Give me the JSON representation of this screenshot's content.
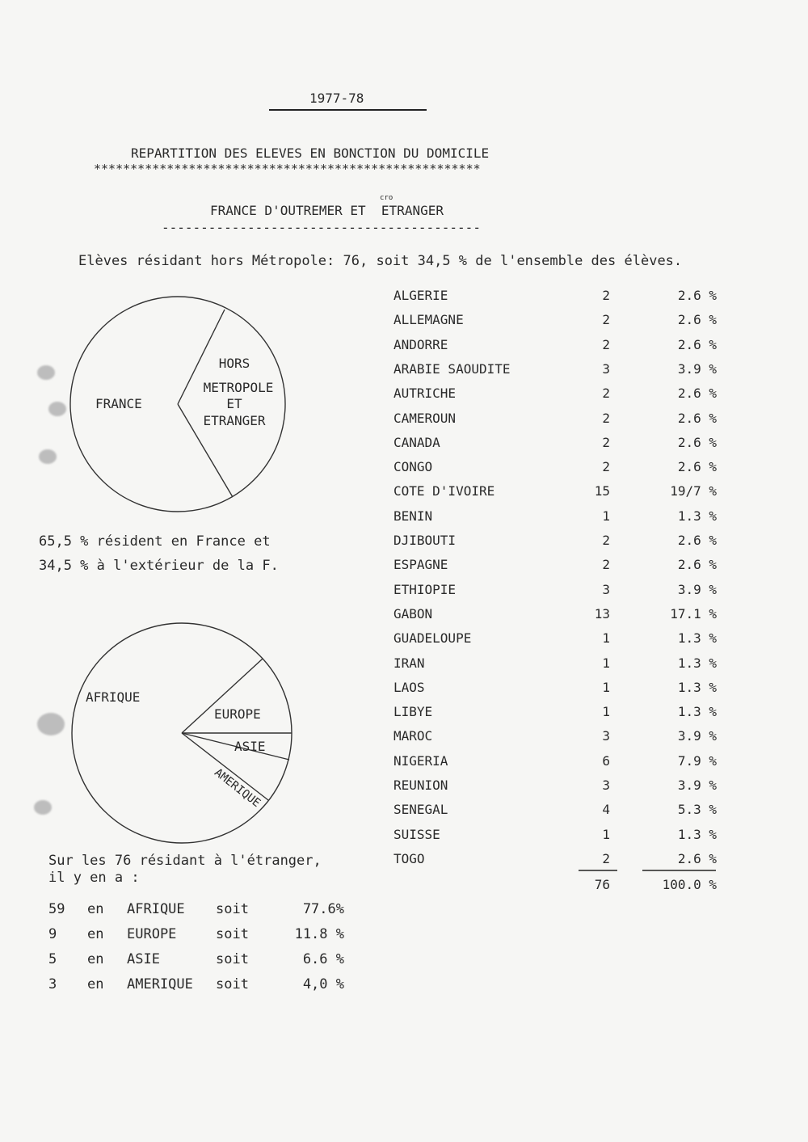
{
  "header": {
    "year": "1977-78",
    "title": "REPARTITION DES ELEVES EN BONCTION DU DOMICILE",
    "stars": "*****************************************************",
    "subtitle": "FRANCE D'OUTREMER ET  ETRANGER",
    "subtitle_annotation": "cro",
    "dashes": "-----------------------------------------"
  },
  "intro": "Elèves résidant hors Métropole: 76, soit 34,5 % de l'ensemble des élèves.",
  "pie1": {
    "labels": [
      "FRANCE",
      "HORS",
      "METROPOLE",
      "ET",
      "ETRANGER"
    ],
    "caption_line1": "65,5 % résident en France et",
    "caption_line2": "34,5 % à l'extérieur de la F."
  },
  "pie2": {
    "labels": [
      "AFRIQUE",
      "EUROPE",
      "ASIE",
      "AMERIQUE"
    ]
  },
  "summary": {
    "line1": "Sur les 76 résidant à l'étranger,",
    "line2": "il y en a :",
    "rows": [
      {
        "n": "59",
        "en": "en",
        "region": "AFRIQUE",
        "soit": "soit",
        "pct": "77.6%"
      },
      {
        "n": "9",
        "en": "en",
        "region": "EUROPE",
        "soit": "soit",
        "pct": "11.8 %"
      },
      {
        "n": "5",
        "en": "en",
        "region": "ASIE",
        "soit": "soit",
        "pct": "6.6 %"
      },
      {
        "n": "3",
        "en": "en",
        "region": "AMERIQUE",
        "soit": "soit",
        "pct": "4,0 %"
      }
    ]
  },
  "countries": [
    {
      "name": "ALGERIE",
      "count": "2",
      "pct": "2.6 %"
    },
    {
      "name": "ALLEMAGNE",
      "count": "2",
      "pct": "2.6 %"
    },
    {
      "name": "ANDORRE",
      "count": "2",
      "pct": "2.6 %"
    },
    {
      "name": "ARABIE SAOUDITE",
      "count": "3",
      "pct": "3.9 %"
    },
    {
      "name": "AUTRICHE",
      "count": "2",
      "pct": "2.6 %"
    },
    {
      "name": "CAMEROUN",
      "count": "2",
      "pct": "2.6 %"
    },
    {
      "name": "CANADA",
      "count": "2",
      "pct": "2.6 %"
    },
    {
      "name": "CONGO",
      "count": "2",
      "pct": "2.6 %"
    },
    {
      "name": "COTE D'IVOIRE",
      "count": "15",
      "pct": "19/7 %"
    },
    {
      "name": "BENIN",
      "count": "1",
      "pct": "1.3 %"
    },
    {
      "name": "DJIBOUTI",
      "count": "2",
      "pct": "2.6 %"
    },
    {
      "name": "ESPAGNE",
      "count": "2",
      "pct": "2.6 %"
    },
    {
      "name": "ETHIOPIE",
      "count": "3",
      "pct": "3.9 %"
    },
    {
      "name": "GABON",
      "count": "13",
      "pct": "17.1 %"
    },
    {
      "name": "GUADELOUPE",
      "count": "1",
      "pct": "1.3 %"
    },
    {
      "name": "IRAN",
      "count": "1",
      "pct": "1.3 %"
    },
    {
      "name": "LAOS",
      "count": "1",
      "pct": "1.3 %"
    },
    {
      "name": "LIBYE",
      "count": "1",
      "pct": "1.3 %"
    },
    {
      "name": "MAROC",
      "count": "3",
      "pct": "3.9 %"
    },
    {
      "name": "NIGERIA",
      "count": "6",
      "pct": "7.9 %"
    },
    {
      "name": "REUNION",
      "count": "3",
      "pct": "3.9 %"
    },
    {
      "name": "SENEGAL",
      "count": "4",
      "pct": "5.3 %"
    },
    {
      "name": "SUISSE",
      "count": "1",
      "pct": "1.3 %"
    },
    {
      "name": "TOGO",
      "count": "2",
      "pct": "2.6 %"
    }
  ],
  "totals": {
    "count": "76",
    "pct": "100.0 %"
  }
}
